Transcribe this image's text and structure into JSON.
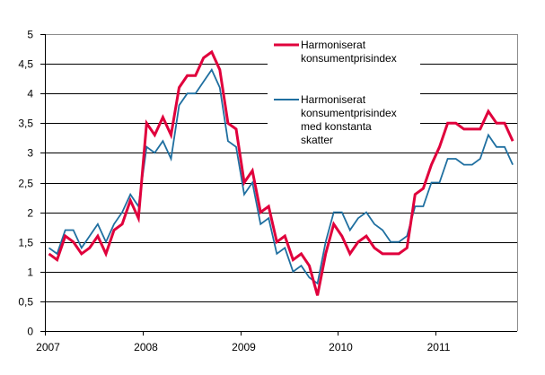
{
  "chart_data": {
    "type": "line",
    "title": "",
    "xlabel": "",
    "ylabel": "",
    "ylim": [
      0,
      5
    ],
    "yticks": [
      0,
      0.5,
      1,
      1.5,
      2,
      2.5,
      3,
      3.5,
      4,
      4.5,
      5
    ],
    "ytick_labels": [
      "0",
      "0,5",
      "1",
      "1,5",
      "2",
      "2,5",
      "3",
      "3,5",
      "4",
      "4,5",
      "5"
    ],
    "xtick_labels": [
      "2007",
      "2008",
      "2009",
      "2010",
      "2011"
    ],
    "x_start": "2007-01",
    "x_end": "2011-10",
    "frequency": "monthly",
    "grid": "horizontal",
    "legend_position": "upper center (inside plot)",
    "series": [
      {
        "name": "Harmoniserat konsumentprisindex",
        "legend_lines": [
          "Harmoniserat",
          "konsumentprisindex"
        ],
        "color": "#e0003c",
        "line_width": 3,
        "values": [
          1.3,
          1.2,
          1.6,
          1.5,
          1.3,
          1.4,
          1.6,
          1.3,
          1.7,
          1.8,
          2.2,
          1.9,
          3.5,
          3.3,
          3.6,
          3.3,
          4.1,
          4.3,
          4.3,
          4.6,
          4.7,
          4.4,
          3.5,
          3.4,
          2.5,
          2.7,
          2.0,
          2.1,
          1.5,
          1.6,
          1.2,
          1.3,
          1.1,
          0.6,
          1.3,
          1.8,
          1.6,
          1.3,
          1.5,
          1.6,
          1.4,
          1.3,
          1.3,
          1.3,
          1.4,
          2.3,
          2.4,
          2.8,
          3.1,
          3.5,
          3.5,
          3.4,
          3.4,
          3.4,
          3.7,
          3.5,
          3.5,
          3.2
        ]
      },
      {
        "name": "Harmoniserat konsumentprisindex med konstanta skatter",
        "legend_lines": [
          "Harmoniserat",
          "konsumentprisindex",
          "med konstanta",
          "skatter"
        ],
        "color": "#1f6fa0",
        "line_width": 1.8,
        "values": [
          1.4,
          1.3,
          1.7,
          1.7,
          1.4,
          1.6,
          1.8,
          1.5,
          1.8,
          2.0,
          2.3,
          2.1,
          3.1,
          3.0,
          3.2,
          2.9,
          3.8,
          4.0,
          4.0,
          4.2,
          4.4,
          4.1,
          3.2,
          3.1,
          2.3,
          2.5,
          1.8,
          1.9,
          1.3,
          1.4,
          1.0,
          1.1,
          0.9,
          0.8,
          1.5,
          2.0,
          2.0,
          1.7,
          1.9,
          2.0,
          1.8,
          1.7,
          1.5,
          1.5,
          1.6,
          2.1,
          2.1,
          2.5,
          2.5,
          2.9,
          2.9,
          2.8,
          2.8,
          2.9,
          3.3,
          3.1,
          3.1,
          2.8
        ]
      }
    ]
  }
}
